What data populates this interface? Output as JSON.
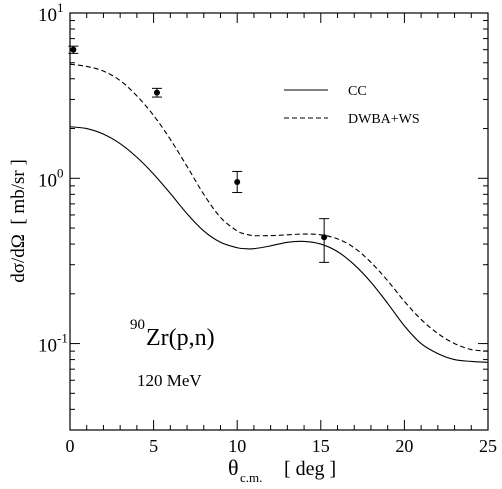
{
  "chart_data": {
    "type": "line",
    "xlabel_main": "θ",
    "xlabel_sub": "c.m.",
    "xlabel_unit": "[ deg ]",
    "ylabel": "dσ/dΩ  [ mb/sr ]",
    "xlim": [
      0,
      25
    ],
    "ylim": [
      0.03,
      10
    ],
    "y_scale": "log",
    "x_ticks": [
      0,
      5,
      10,
      15,
      20,
      25
    ],
    "x_tick_labels": [
      "0",
      "5",
      "10",
      "15",
      "20",
      "25"
    ],
    "y_major_ticks": [
      0.1,
      1,
      10
    ],
    "y_tick_labels": [
      {
        "base": "10",
        "exp": "-1"
      },
      {
        "base": "10",
        "exp": "0"
      },
      {
        "base": "10",
        "exp": "1"
      }
    ],
    "grid": false,
    "legend_position": "top-right",
    "annotation": {
      "mass": "90",
      "reaction": "Zr(p,n)",
      "energy": "120 MeV"
    },
    "series": [
      {
        "name": "CC",
        "style": "solid",
        "x": [
          0,
          1,
          2,
          3,
          4,
          5,
          6,
          7,
          8,
          9,
          10,
          10.5,
          11,
          12,
          13,
          14,
          15,
          16,
          17,
          18,
          19,
          20,
          21,
          22,
          23,
          24,
          25
        ],
        "y": [
          2.05,
          2.0,
          1.85,
          1.62,
          1.34,
          1.06,
          0.81,
          0.61,
          0.48,
          0.41,
          0.38,
          0.375,
          0.375,
          0.39,
          0.41,
          0.415,
          0.4,
          0.36,
          0.3,
          0.235,
          0.175,
          0.128,
          0.1,
          0.087,
          0.08,
          0.078,
          0.077
        ]
      },
      {
        "name": "DWBA+WS",
        "style": "dashed",
        "x": [
          0,
          1,
          2,
          3,
          4,
          5,
          6,
          7,
          8,
          9,
          10,
          10.5,
          11,
          12,
          13,
          14,
          15,
          16,
          17,
          18,
          19,
          20,
          21,
          22,
          23,
          24,
          25
        ],
        "y": [
          4.9,
          4.75,
          4.45,
          3.9,
          3.15,
          2.4,
          1.72,
          1.18,
          0.8,
          0.58,
          0.48,
          0.46,
          0.45,
          0.45,
          0.455,
          0.46,
          0.455,
          0.43,
          0.38,
          0.31,
          0.24,
          0.18,
          0.14,
          0.115,
          0.1,
          0.092,
          0.09
        ]
      }
    ],
    "data_points": {
      "x": [
        0.2,
        5.2,
        10.0,
        15.2
      ],
      "y": [
        6.0,
        3.3,
        0.95,
        0.44
      ],
      "err_low": [
        5.7,
        3.1,
        0.82,
        0.31
      ],
      "err_high": [
        6.3,
        3.5,
        1.1,
        0.57
      ]
    }
  }
}
